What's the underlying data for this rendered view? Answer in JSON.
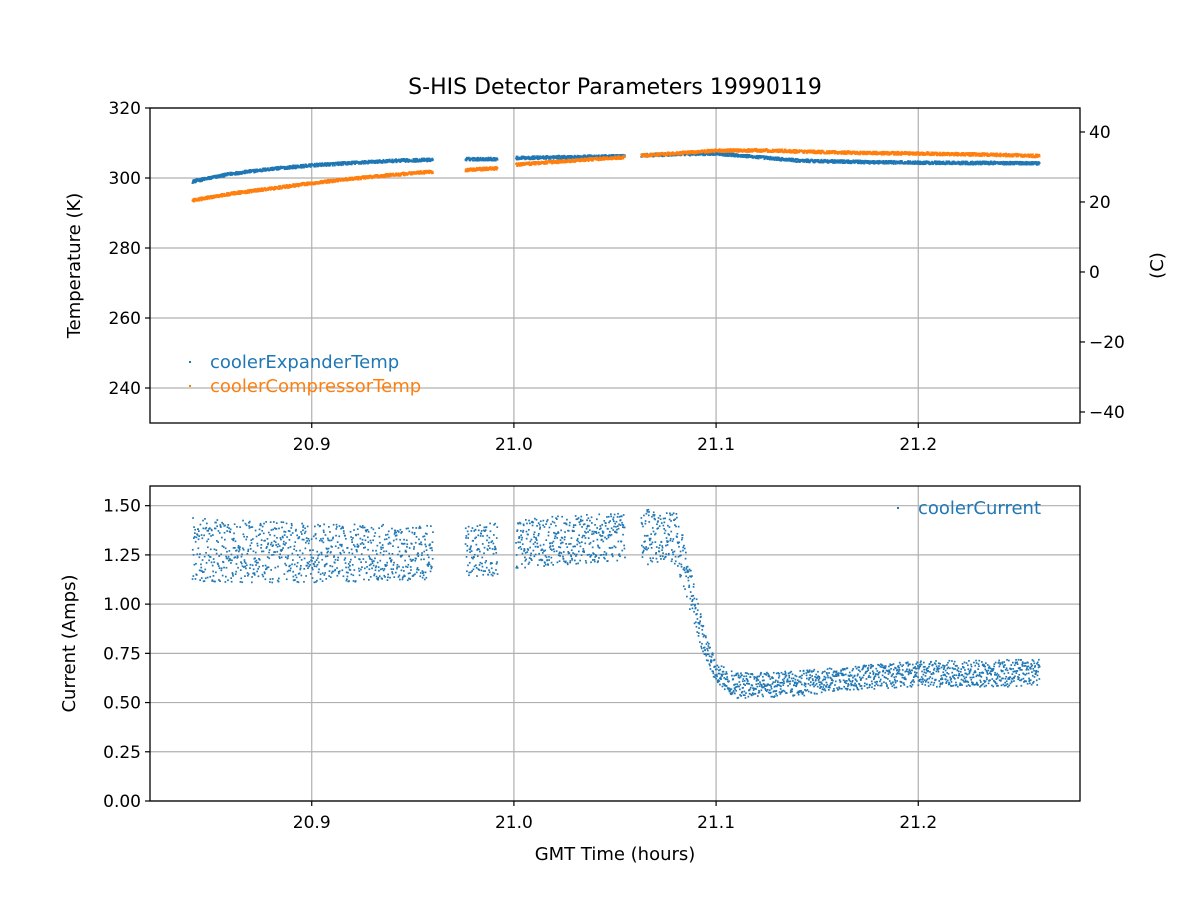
{
  "figure": {
    "title": "S-HIS Detector Parameters 19990119"
  },
  "colors": {
    "blue": "#1f77b4",
    "orange": "#ff7f0e",
    "grid": "#b0b0b0"
  },
  "chart_data": [
    {
      "type": "scatter",
      "title": "S-HIS Detector Parameters 19990119",
      "xlabel": "",
      "ylabel": "Temperature (K)",
      "y2label": "(C)",
      "xlim": [
        20.82,
        21.28
      ],
      "ylim": [
        230,
        320
      ],
      "y2lim": [
        -43.15,
        46.85
      ],
      "xticks": [
        "20.9",
        "21.0",
        "21.1",
        "21.2"
      ],
      "yticks": [
        "240",
        "260",
        "280",
        "300",
        "320"
      ],
      "y2ticks": [
        "−40",
        "−20",
        "0",
        "20",
        "40"
      ],
      "grid": true,
      "legend_position": "lower-left",
      "x_segments": [
        [
          20.841,
          20.96
        ],
        [
          20.976,
          20.992
        ],
        [
          21.001,
          21.055
        ],
        [
          21.063,
          21.26
        ]
      ],
      "series": [
        {
          "name": "coolerExpanderTemp",
          "color": "#1f77b4",
          "x": [
            20.841,
            20.86,
            20.88,
            20.9,
            20.92,
            20.94,
            20.96,
            20.976,
            20.992,
            21.001,
            21.02,
            21.04,
            21.055,
            21.063,
            21.08,
            21.1,
            21.12,
            21.14,
            21.16,
            21.18,
            21.2,
            21.22,
            21.24,
            21.26
          ],
          "y": [
            299.0,
            301.2,
            302.6,
            303.6,
            304.3,
            304.9,
            305.2,
            305.4,
            305.4,
            305.7,
            305.9,
            306.1,
            306.2,
            306.4,
            306.8,
            307.0,
            306.0,
            305.0,
            304.7,
            304.5,
            304.4,
            304.3,
            304.3,
            304.2
          ]
        },
        {
          "name": "coolerCompressorTemp",
          "color": "#ff7f0e",
          "x": [
            20.841,
            20.86,
            20.88,
            20.9,
            20.92,
            20.94,
            20.96,
            20.976,
            20.992,
            21.001,
            21.02,
            21.04,
            21.055,
            21.063,
            21.08,
            21.1,
            21.12,
            21.14,
            21.16,
            21.18,
            21.2,
            21.22,
            21.24,
            21.26
          ],
          "y": [
            293.6,
            295.5,
            297.0,
            298.5,
            299.8,
            300.9,
            301.8,
            302.3,
            302.8,
            303.8,
            304.6,
            305.4,
            305.9,
            306.4,
            307.0,
            307.8,
            307.9,
            307.6,
            307.3,
            307.1,
            307.0,
            306.8,
            306.6,
            306.3
          ]
        }
      ]
    },
    {
      "type": "scatter",
      "title": "",
      "xlabel": "GMT Time (hours)",
      "ylabel": "Current (Amps)",
      "xlim": [
        20.82,
        21.28
      ],
      "ylim": [
        0.0,
        1.6
      ],
      "xticks": [
        "20.9",
        "21.0",
        "21.1",
        "21.2"
      ],
      "yticks": [
        "0.00",
        "0.25",
        "0.50",
        "0.75",
        "1.00",
        "1.25",
        "1.50"
      ],
      "grid": true,
      "legend_position": "upper-right",
      "x_segments": [
        [
          20.841,
          20.96
        ],
        [
          20.976,
          20.992
        ],
        [
          21.001,
          21.055
        ],
        [
          21.063,
          21.26
        ]
      ],
      "series": [
        {
          "name": "coolerCurrent",
          "color": "#1f77b4",
          "envelope": {
            "x": [
              20.841,
              20.9,
              20.96,
              20.976,
              20.992,
              21.001,
              21.05,
              21.055,
              21.063,
              21.08,
              21.085,
              21.09,
              21.095,
              21.1,
              21.11,
              21.14,
              21.16,
              21.2,
              21.26
            ],
            "upper": [
              1.44,
              1.41,
              1.4,
              1.41,
              1.41,
              1.44,
              1.46,
              1.46,
              1.48,
              1.48,
              1.3,
              1.05,
              0.85,
              0.7,
              0.65,
              0.66,
              0.68,
              0.71,
              0.72
            ],
            "lower": [
              1.11,
              1.11,
              1.12,
              1.14,
              1.14,
              1.18,
              1.22,
              1.22,
              1.2,
              1.2,
              1.05,
              0.85,
              0.72,
              0.6,
              0.52,
              0.53,
              0.56,
              0.58,
              0.58
            ]
          }
        }
      ]
    }
  ]
}
